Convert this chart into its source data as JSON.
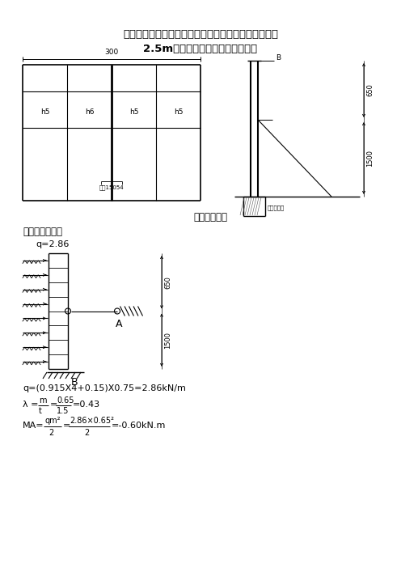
{
  "title_line1": "《菆田市房建市政工程围挡、外架、扬尘等示范图集》",
  "title_line2": "2.5m钉木复合板装配式围墙计算书",
  "caption_diagram": "计算受力简图",
  "section_label": "柱承受风线荷载",
  "q_label": "q=2.86",
  "formula1": "q=(0.915X4+0.15)X0.75=2.86kN/m",
  "dim_300": "300",
  "dim_h5a": "h5",
  "dim_h6": "h6",
  "dim_h5b": "h5",
  "dim_h5c": "h5",
  "label_A": "A",
  "label_B": "B",
  "dim_650": "650",
  "dim_1500": "1500",
  "label_slot": "槽匄15054",
  "label_anchor": "地脚螺栓下"
}
